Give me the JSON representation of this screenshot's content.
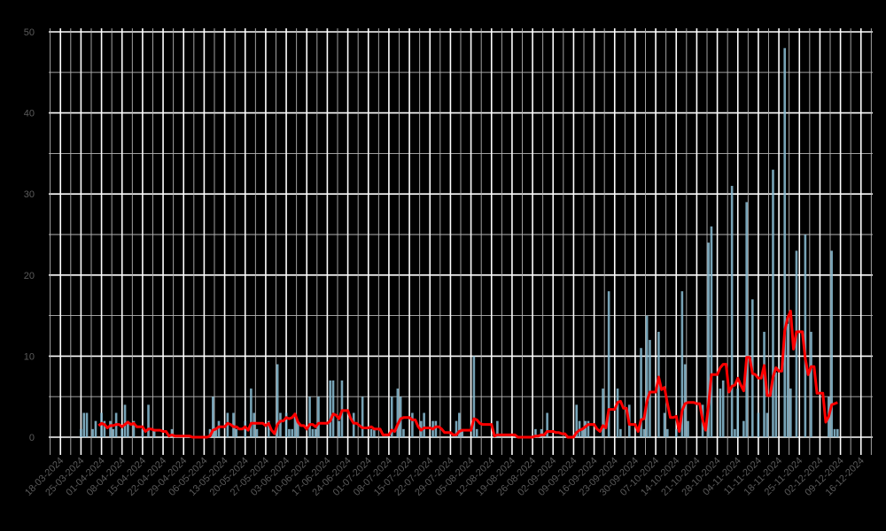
{
  "chart_data": {
    "type": "bar",
    "title": "",
    "xlabel": "",
    "ylabel": "",
    "ylim": [
      0,
      50
    ],
    "y_ticks": [
      "0",
      "10",
      "20",
      "30",
      "40",
      "50"
    ],
    "x_range": [
      "2024-03-14",
      "2024-12-20"
    ],
    "x_tick_labels": [
      "18-03-2024",
      "25-03-2024",
      "01-04-2024",
      "08-04-2024",
      "15-04-2024",
      "22-04-2024",
      "29-04-2024",
      "06-05-2024",
      "13-05-2024",
      "20-05-2024",
      "27-05-2024",
      "03-06-2024",
      "10-06-2024",
      "17-06-2024",
      "24-06-2024",
      "01-07-2024",
      "08-07-2024",
      "15-07-2024",
      "22-07-2024",
      "29-07-2024",
      "05-08-2024",
      "12-08-2024",
      "19-08-2024",
      "26-08-2024",
      "02-09-2024",
      "09-09-2024",
      "16-09-2024",
      "23-09-2024",
      "30-09-2024",
      "07-10-2024",
      "14-10-2024",
      "21-10-2024",
      "28-10-2024",
      "04-11-2024",
      "11-11-2024",
      "18-11-2024",
      "25-11-2024",
      "02-12-2024",
      "09-12-2024",
      "16-12-2024"
    ],
    "grid": true,
    "background": "#000000",
    "series": [
      {
        "type": "bar",
        "color": "#8cbfd6",
        "daily_values_nonzero": [
          [
            "2024-03-25",
            1
          ],
          [
            "2024-03-26",
            3
          ],
          [
            "2024-03-27",
            3
          ],
          [
            "2024-03-29",
            1
          ],
          [
            "2024-03-30",
            2
          ],
          [
            "2024-04-01",
            3
          ],
          [
            "2024-04-02",
            2
          ],
          [
            "2024-04-04",
            2
          ],
          [
            "2024-04-05",
            1
          ],
          [
            "2024-04-06",
            3
          ],
          [
            "2024-04-08",
            1
          ],
          [
            "2024-04-09",
            4
          ],
          [
            "2024-04-10",
            2
          ],
          [
            "2024-04-12",
            2
          ],
          [
            "2024-04-15",
            1
          ],
          [
            "2024-04-17",
            4
          ],
          [
            "2024-04-19",
            1
          ],
          [
            "2024-04-25",
            1
          ],
          [
            "2024-05-08",
            1
          ],
          [
            "2024-05-09",
            5
          ],
          [
            "2024-05-10",
            1
          ],
          [
            "2024-05-11",
            2
          ],
          [
            "2024-05-14",
            3
          ],
          [
            "2024-05-16",
            3
          ],
          [
            "2024-05-17",
            1
          ],
          [
            "2024-05-20",
            2
          ],
          [
            "2024-05-22",
            6
          ],
          [
            "2024-05-23",
            3
          ],
          [
            "2024-05-24",
            1
          ],
          [
            "2024-05-28",
            2
          ],
          [
            "2024-05-31",
            9
          ],
          [
            "2024-06-01",
            3
          ],
          [
            "2024-06-03",
            3
          ],
          [
            "2024-06-04",
            1
          ],
          [
            "2024-06-05",
            1
          ],
          [
            "2024-06-06",
            3
          ],
          [
            "2024-06-07",
            2
          ],
          [
            "2024-06-11",
            5
          ],
          [
            "2024-06-12",
            1
          ],
          [
            "2024-06-13",
            1
          ],
          [
            "2024-06-14",
            5
          ],
          [
            "2024-06-18",
            7
          ],
          [
            "2024-06-19",
            7
          ],
          [
            "2024-06-21",
            2
          ],
          [
            "2024-06-22",
            7
          ],
          [
            "2024-06-26",
            3
          ],
          [
            "2024-06-29",
            5
          ],
          [
            "2024-07-02",
            1
          ],
          [
            "2024-07-03",
            1
          ],
          [
            "2024-07-09",
            5
          ],
          [
            "2024-07-11",
            6
          ],
          [
            "2024-07-12",
            5
          ],
          [
            "2024-07-13",
            1
          ],
          [
            "2024-07-16",
            3
          ],
          [
            "2024-07-19",
            2
          ],
          [
            "2024-07-20",
            3
          ],
          [
            "2024-07-23",
            2
          ],
          [
            "2024-07-24",
            2
          ],
          [
            "2024-07-31",
            2
          ],
          [
            "2024-08-01",
            3
          ],
          [
            "2024-08-02",
            1
          ],
          [
            "2024-08-06",
            10
          ],
          [
            "2024-08-07",
            1
          ],
          [
            "2024-08-14",
            2
          ],
          [
            "2024-08-27",
            1
          ],
          [
            "2024-08-29",
            1
          ],
          [
            "2024-08-31",
            3
          ],
          [
            "2024-09-10",
            4
          ],
          [
            "2024-09-11",
            2
          ],
          [
            "2024-09-12",
            1
          ],
          [
            "2024-09-13",
            2
          ],
          [
            "2024-09-14",
            2
          ],
          [
            "2024-09-19",
            6
          ],
          [
            "2024-09-21",
            18
          ],
          [
            "2024-09-24",
            6
          ],
          [
            "2024-09-25",
            1
          ],
          [
            "2024-09-28",
            4
          ],
          [
            "2024-10-02",
            11
          ],
          [
            "2024-10-03",
            1
          ],
          [
            "2024-10-04",
            15
          ],
          [
            "2024-10-05",
            12
          ],
          [
            "2024-10-08",
            13
          ],
          [
            "2024-10-10",
            3
          ],
          [
            "2024-10-11",
            1
          ],
          [
            "2024-10-14",
            1
          ],
          [
            "2024-10-16",
            18
          ],
          [
            "2024-10-17",
            9
          ],
          [
            "2024-10-18",
            2
          ],
          [
            "2024-10-23",
            4
          ],
          [
            "2024-10-25",
            24
          ],
          [
            "2024-10-26",
            26
          ],
          [
            "2024-10-29",
            6
          ],
          [
            "2024-10-30",
            7
          ],
          [
            "2024-11-02",
            31
          ],
          [
            "2024-11-03",
            1
          ],
          [
            "2024-11-04",
            6
          ],
          [
            "2024-11-06",
            2
          ],
          [
            "2024-11-07",
            29
          ],
          [
            "2024-11-09",
            17
          ],
          [
            "2024-11-11",
            3
          ],
          [
            "2024-11-13",
            13
          ],
          [
            "2024-11-14",
            3
          ],
          [
            "2024-11-16",
            33
          ],
          [
            "2024-11-17",
            8
          ],
          [
            "2024-11-20",
            48
          ],
          [
            "2024-11-21",
            14
          ],
          [
            "2024-11-22",
            6
          ],
          [
            "2024-11-24",
            23
          ],
          [
            "2024-11-27",
            25
          ],
          [
            "2024-11-29",
            13
          ],
          [
            "2024-12-05",
            5
          ],
          [
            "2024-12-06",
            23
          ],
          [
            "2024-12-07",
            1
          ],
          [
            "2024-12-08",
            1
          ]
        ]
      },
      {
        "type": "line",
        "color": "#ff0000",
        "rolling_mean_days": 7
      }
    ]
  }
}
